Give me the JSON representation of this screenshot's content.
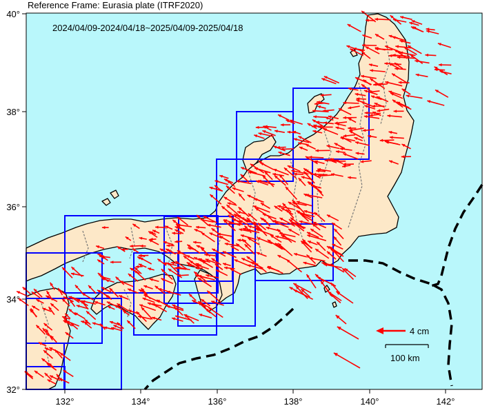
{
  "header": {
    "reference_frame": "Reference Frame: Eurasia plate (ITRF2020)",
    "period": "2024/04/09-2024/04/18~2025/04/09-2025/04/18"
  },
  "axes": {
    "lon_labels": [
      "132°",
      "134°",
      "136°",
      "138°",
      "140°",
      "142°"
    ],
    "lat_labels": [
      "32°",
      "34°",
      "36°",
      "38°",
      "40°"
    ]
  },
  "legend": {
    "vector_label": "4 cm",
    "scale_label": "100 km"
  },
  "colors": {
    "sea": "#b9f7fb",
    "land": "#fde8c8",
    "vector": "#ff0000",
    "box": "#0000ff",
    "trench": "#000000"
  }
}
